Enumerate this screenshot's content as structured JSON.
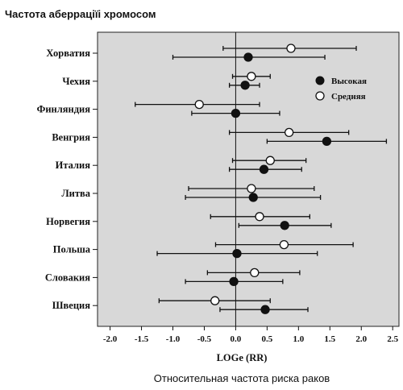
{
  "chart_data": {
    "type": "scatter",
    "title": "Частота аберраціїі хромосом",
    "caption": "Относительная частота риска раков",
    "xlabel": "LOGe (RR)",
    "xlim": [
      -2.2,
      2.6
    ],
    "xticks": [
      "-2.0",
      "-1.5",
      "-1.0",
      "-0.5",
      "0.0",
      "0.5",
      "1.0",
      "1.5",
      "2.0",
      "2.5"
    ],
    "xtick_values": [
      -2.0,
      -1.5,
      -1.0,
      -0.5,
      0.0,
      0.5,
      1.0,
      1.5,
      2.0,
      2.5
    ],
    "categories": [
      "Хорватия",
      "Чехия",
      "Финляндия",
      "Венгрия",
      "Италия",
      "Литва",
      "Норвегия",
      "Польша",
      "Словакия",
      "Швеция"
    ],
    "legend_position": "top-right",
    "series": [
      {
        "name": "Высокая",
        "marker": "filled-circle",
        "estimate": [
          0.2,
          0.15,
          0.0,
          1.45,
          0.45,
          0.28,
          0.78,
          0.02,
          -0.03,
          0.47
        ],
        "ci_low": [
          -1.0,
          -0.1,
          -0.7,
          0.5,
          -0.1,
          -0.8,
          0.05,
          -1.25,
          -0.8,
          -0.25
        ],
        "ci_high": [
          1.42,
          0.38,
          0.7,
          2.4,
          1.05,
          1.35,
          1.52,
          1.3,
          0.75,
          1.15
        ]
      },
      {
        "name": "Средняя",
        "marker": "open-circle",
        "estimate": [
          0.88,
          0.25,
          -0.58,
          0.85,
          0.55,
          0.25,
          0.38,
          0.77,
          0.3,
          -0.33
        ],
        "ci_low": [
          -0.2,
          -0.05,
          -1.6,
          -0.1,
          -0.05,
          -0.75,
          -0.4,
          -0.32,
          -0.45,
          -1.22
        ],
        "ci_high": [
          1.92,
          0.55,
          0.38,
          1.8,
          1.12,
          1.25,
          1.18,
          1.87,
          1.02,
          0.55
        ]
      }
    ]
  }
}
